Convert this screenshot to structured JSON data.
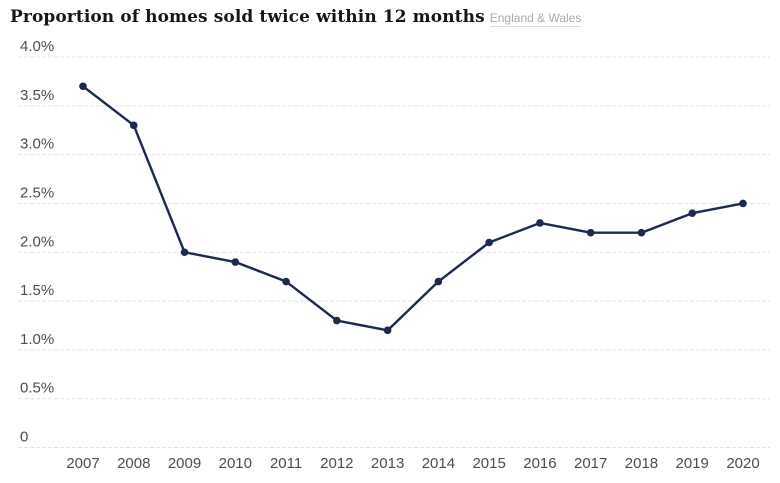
{
  "chart_data": {
    "type": "line",
    "title": "Proportion of homes sold twice within 12 months",
    "subtitle": "England & Wales",
    "x": [
      2007,
      2008,
      2009,
      2010,
      2011,
      2012,
      2013,
      2014,
      2015,
      2016,
      2017,
      2018,
      2019,
      2020
    ],
    "values": [
      3.7,
      3.3,
      2.0,
      1.9,
      1.7,
      1.3,
      1.2,
      1.7,
      2.1,
      2.3,
      2.2,
      2.2,
      2.4,
      2.5
    ],
    "series_name": "Proportion of homes sold twice within 12 months",
    "xlabel": "",
    "ylabel": "",
    "ylim": [
      0,
      4
    ],
    "yticks": [
      {
        "value": 4.0,
        "label": "4.0%"
      },
      {
        "value": 3.5,
        "label": "3.5%"
      },
      {
        "value": 3.0,
        "label": "3.0%"
      },
      {
        "value": 2.5,
        "label": "2.5%"
      },
      {
        "value": 2.0,
        "label": "2.0%"
      },
      {
        "value": 1.5,
        "label": "1.5%"
      },
      {
        "value": 1.0,
        "label": "1.0%"
      },
      {
        "value": 0.5,
        "label": "0.5%"
      },
      {
        "value": 0.0,
        "label": "0"
      }
    ],
    "grid": true,
    "grid_style": "dashed",
    "legend_position": "none",
    "marker": "circle",
    "colors": {
      "line": "#1c2a4d",
      "marker": "#1c2a4d",
      "grid": "#e4e4e4",
      "tick_label": "#4d4d4d",
      "title": "#161616",
      "subtitle": "#a9a9a9",
      "background": "#ffffff"
    }
  }
}
